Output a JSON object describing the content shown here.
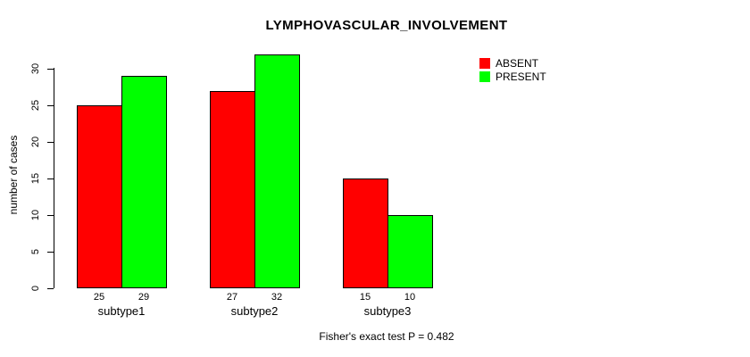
{
  "title": "LYMPHOVASCULAR_INVOLVEMENT",
  "footer_annotation": "Fisher's exact test P = 0.482",
  "colors": {
    "absent": "#ff0000",
    "present": "#00ff00",
    "axis": "#000000",
    "background": "#ffffff"
  },
  "chart_data": {
    "type": "bar",
    "grouped": true,
    "title": "LYMPHOVASCULAR_INVOLVEMENT",
    "xlabel": "",
    "ylabel": "number of cases",
    "categories": [
      "subtype1",
      "subtype2",
      "subtype3"
    ],
    "series": [
      {
        "name": "ABSENT",
        "color": "#ff0000",
        "values": [
          25,
          27,
          15
        ]
      },
      {
        "name": "PRESENT",
        "color": "#00ff00",
        "values": [
          29,
          32,
          10
        ]
      }
    ],
    "bar_value_labels": [
      [
        "25",
        "29"
      ],
      [
        "27",
        "32"
      ],
      [
        "15",
        "10"
      ]
    ],
    "yticks": [
      0,
      5,
      10,
      15,
      20,
      25,
      30
    ],
    "ylim": [
      0,
      32
    ],
    "grid": false,
    "legend_position": "top-right",
    "annotation": "Fisher's exact test P = 0.482"
  }
}
